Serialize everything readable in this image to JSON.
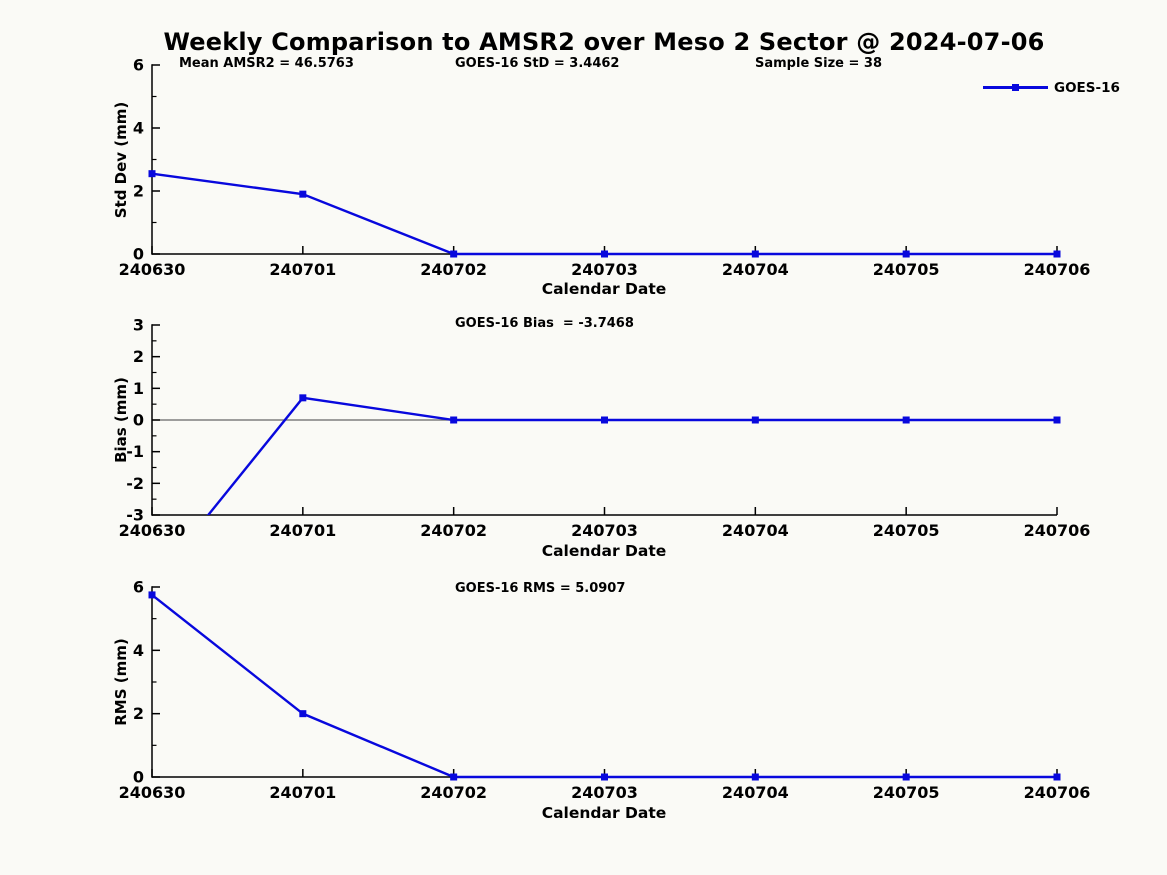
{
  "title": "Weekly Comparison to AMSR2 over Meso 2 Sector @ 2024-07-06",
  "legend": {
    "label": "GOES-16",
    "position": "top-right",
    "marker": "square"
  },
  "colors": {
    "series_blue": "#0808dd",
    "axis": "#000000",
    "zero_line": "#666666",
    "background": "#fafaf6"
  },
  "chart_data": [
    {
      "type": "line",
      "name": "std_dev",
      "ylabel": "Std Dev (mm)",
      "xlabel": "Calendar Date",
      "x_categories": [
        "240630",
        "240701",
        "240702",
        "240703",
        "240704",
        "240705",
        "240706"
      ],
      "ylim": [
        0,
        6
      ],
      "ytick_labels": [
        0,
        2,
        4,
        6
      ],
      "ytick_minor_step": 1,
      "grid": false,
      "zero_line": false,
      "series": [
        {
          "name": "GOES-16",
          "color": "#0808dd",
          "marker": "square",
          "values": [
            2.55,
            1.9,
            0,
            0,
            0,
            0,
            0
          ]
        }
      ],
      "annotations": [
        {
          "text": "Mean AMSR2 = 46.5763"
        },
        {
          "text": "GOES-16 StD = 3.4462"
        },
        {
          "text": "Sample Size = 38"
        }
      ]
    },
    {
      "type": "line",
      "name": "bias",
      "ylabel": "Bias (mm)",
      "xlabel": "Calendar Date",
      "x_categories": [
        "240630",
        "240701",
        "240702",
        "240703",
        "240704",
        "240705",
        "240706"
      ],
      "ylim": [
        -3,
        3
      ],
      "ytick_labels": [
        -3,
        -2,
        -1,
        0,
        1,
        2,
        3
      ],
      "ytick_minor_step": 0.5,
      "grid": false,
      "zero_line": true,
      "series": [
        {
          "name": "GOES-16",
          "color": "#0808dd",
          "marker": "square",
          "values": [
            -5.2,
            0.7,
            0,
            0,
            0,
            0,
            0
          ]
        }
      ],
      "annotations": [
        {
          "text": "GOES-16 Bias  = -3.7468"
        }
      ]
    },
    {
      "type": "line",
      "name": "rms",
      "ylabel": "RMS (mm)",
      "xlabel": "Calendar Date",
      "x_categories": [
        "240630",
        "240701",
        "240702",
        "240703",
        "240704",
        "240705",
        "240706"
      ],
      "ylim": [
        0,
        6
      ],
      "ytick_labels": [
        0,
        2,
        4,
        6
      ],
      "ytick_minor_step": 1,
      "grid": false,
      "zero_line": false,
      "series": [
        {
          "name": "GOES-16",
          "color": "#0808dd",
          "marker": "square",
          "values": [
            5.75,
            2.0,
            0,
            0,
            0,
            0,
            0
          ]
        }
      ],
      "annotations": [
        {
          "text": "GOES-16 RMS = 5.0907"
        }
      ]
    }
  ]
}
